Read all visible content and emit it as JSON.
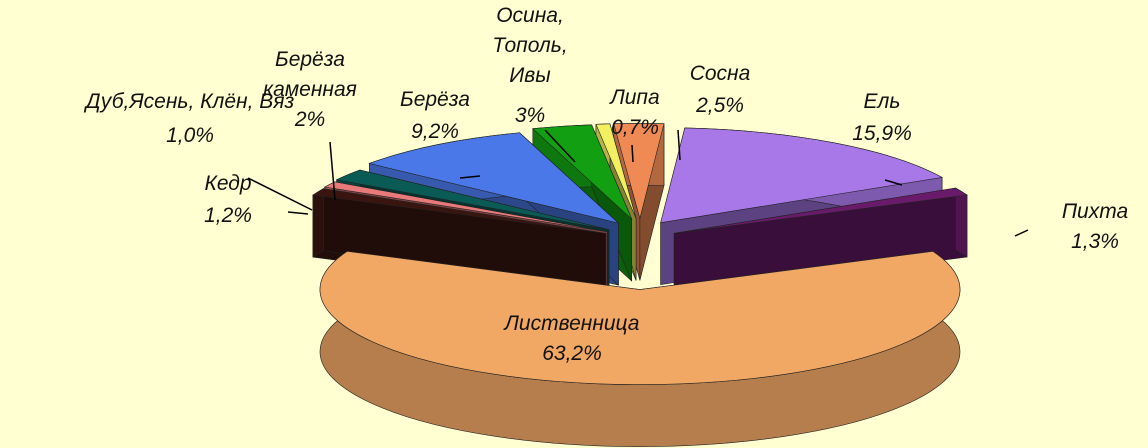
{
  "chart_data": {
    "type": "pie",
    "categories": [
      "Лиственница",
      "Кедр",
      "Дуб,Ясень, Клён, Вяз",
      "Берёза\nкаменная",
      "Берёза",
      "Осина,\nТополь,\nИвы",
      "Липа",
      "Сосна",
      "Ель",
      "Пихта"
    ],
    "values": [
      63.2,
      1.2,
      1.0,
      2,
      9.2,
      3,
      0.7,
      2.5,
      15.9,
      1.3
    ],
    "value_labels": [
      "63,2%",
      "1,2%",
      "1,0%",
      "2%",
      "9,2%",
      "3%",
      "0,7%",
      "2,5%",
      "15,9%",
      "1,3%"
    ],
    "colors": [
      "#f2a865",
      "#3a1510",
      "#e87a7a",
      "#0a5a55",
      "#4a78e8",
      "#12a012",
      "#f2f060",
      "#f08a55",
      "#a878e8",
      "#6a1a6a"
    ]
  }
}
